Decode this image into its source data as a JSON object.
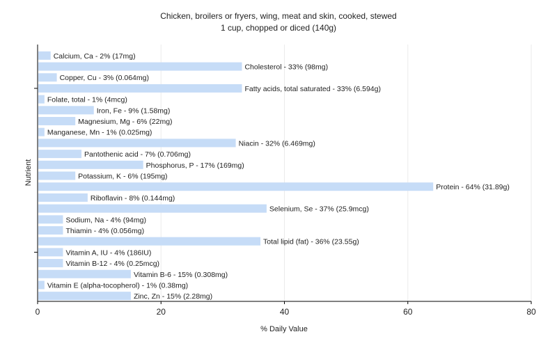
{
  "chart_data": {
    "type": "bar",
    "orientation": "horizontal",
    "title": "Chicken, broilers or fryers, wing, meat and skin, cooked, stewed",
    "subtitle": "1 cup, chopped or diced (140g)",
    "xlabel": "% Daily Value",
    "ylabel": "Nutrient",
    "xlim": [
      0,
      80
    ],
    "xticks": [
      0,
      20,
      40,
      60,
      80
    ],
    "grid": true,
    "bar_color": "#c6dcf7",
    "categories": [
      "Calcium, Ca",
      "Cholesterol",
      "Copper, Cu",
      "Fatty acids, total saturated",
      "Folate, total",
      "Iron, Fe",
      "Magnesium, Mg",
      "Manganese, Mn",
      "Niacin",
      "Pantothenic acid",
      "Phosphorus, P",
      "Potassium, K",
      "Protein",
      "Riboflavin",
      "Selenium, Se",
      "Sodium, Na",
      "Thiamin",
      "Total lipid (fat)",
      "Vitamin A, IU",
      "Vitamin B-12",
      "Vitamin B-6",
      "Vitamin E (alpha-tocopherol)",
      "Zinc, Zn"
    ],
    "values": [
      2,
      33,
      3,
      33,
      1,
      9,
      6,
      1,
      32,
      7,
      17,
      6,
      64,
      8,
      37,
      4,
      4,
      36,
      4,
      4,
      15,
      1,
      15
    ],
    "labels": [
      "Calcium, Ca - 2% (17mg)",
      "Cholesterol - 33% (98mg)",
      "Copper, Cu - 3% (0.064mg)",
      "Fatty acids, total saturated - 33% (6.594g)",
      "Folate, total - 1% (4mcg)",
      "Iron, Fe - 9% (1.58mg)",
      "Magnesium, Mg - 6% (22mg)",
      "Manganese, Mn - 1% (0.025mg)",
      "Niacin - 32% (6.469mg)",
      "Pantothenic acid - 7% (0.706mg)",
      "Phosphorus, P - 17% (169mg)",
      "Potassium, K - 6% (195mg)",
      "Protein - 64% (31.89g)",
      "Riboflavin - 8% (0.144mg)",
      "Selenium, Se - 37% (25.9mcg)",
      "Sodium, Na - 4% (94mg)",
      "Thiamin - 4% (0.056mg)",
      "Total lipid (fat) - 36% (23.55g)",
      "Vitamin A, IU - 4% (186IU)",
      "Vitamin B-12 - 4% (0.25mcg)",
      "Vitamin B-6 - 15% (0.308mg)",
      "Vitamin E (alpha-tocopherol) - 1% (0.38mg)",
      "Zinc, Zn - 15% (2.28mg)"
    ]
  }
}
